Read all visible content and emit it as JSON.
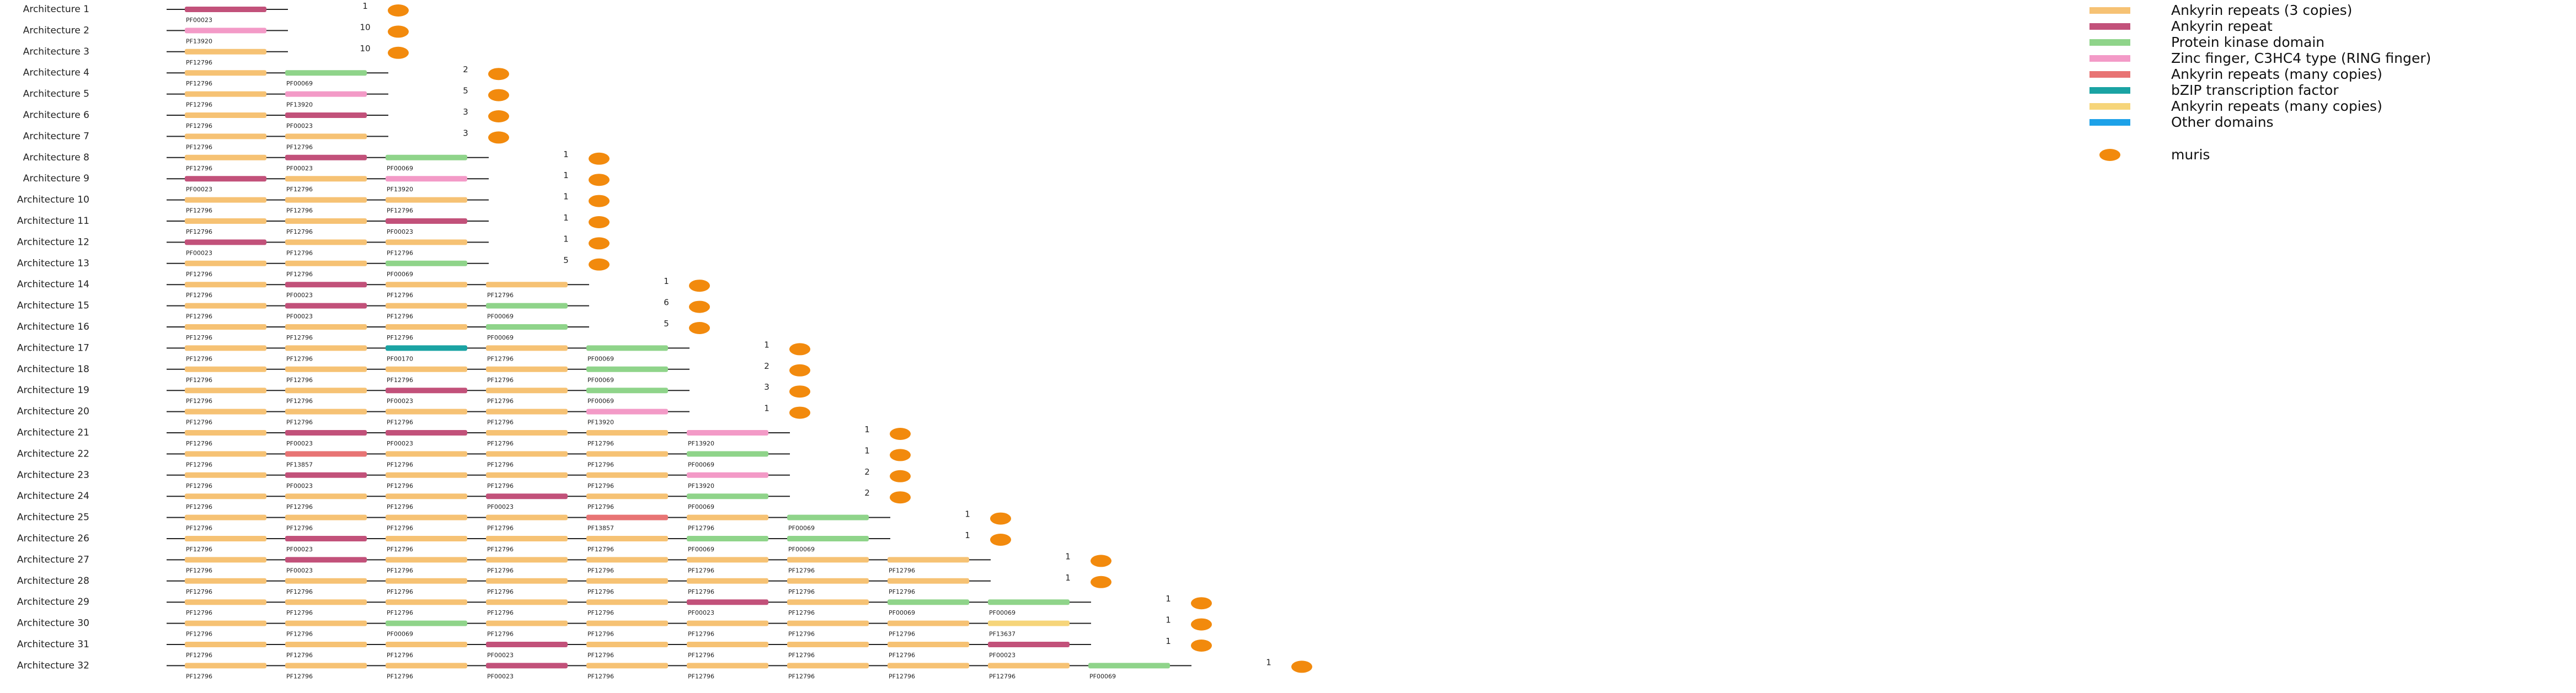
{
  "species": [
    {
      "name": "muris",
      "color": "#f28a0d"
    }
  ],
  "legend": [
    {
      "name": "Ankyrin repeats (3 copies)",
      "color": "#f6c274",
      "code": "PF12796"
    },
    {
      "name": "Ankyrin repeat",
      "color": "#c2517a",
      "code": "PF00023"
    },
    {
      "name": "Protein kinase domain",
      "color": "#8fd48a",
      "code": "PF00069"
    },
    {
      "name": "Zinc finger, C3HC4 type (RING finger)",
      "color": "#f39ac7",
      "code": "PF13920"
    },
    {
      "name": "Ankyrin repeats (many copies)",
      "color": "#e87474",
      "code": "PF13857"
    },
    {
      "name": "bZIP transcription factor",
      "color": "#1aa3a3",
      "code": "PF00170"
    },
    {
      "name": "Ankyrin repeats (many copies)",
      "color": "#f6d57a",
      "code": "PF13637"
    },
    {
      "name": "Other domains",
      "color": "#1da1e8",
      "code": ""
    }
  ],
  "architectures": [
    {
      "label": "Architecture 1",
      "domains": [
        "PF00023"
      ],
      "count": "1"
    },
    {
      "label": "Architecture 2",
      "domains": [
        "PF13920"
      ],
      "count": "10"
    },
    {
      "label": "Architecture 3",
      "domains": [
        "PF12796"
      ],
      "count": "10"
    },
    {
      "label": "Architecture 4",
      "domains": [
        "PF12796",
        "PF00069"
      ],
      "count": "2"
    },
    {
      "label": "Architecture 5",
      "domains": [
        "PF12796",
        "PF13920"
      ],
      "count": "5"
    },
    {
      "label": "Architecture 6",
      "domains": [
        "PF12796",
        "PF00023"
      ],
      "count": "3"
    },
    {
      "label": "Architecture 7",
      "domains": [
        "PF12796",
        "PF12796"
      ],
      "count": "3"
    },
    {
      "label": "Architecture 8",
      "domains": [
        "PF12796",
        "PF00023",
        "PF00069"
      ],
      "count": "1"
    },
    {
      "label": "Architecture 9",
      "domains": [
        "PF00023",
        "PF12796",
        "PF13920"
      ],
      "count": "1"
    },
    {
      "label": "Architecture 10",
      "domains": [
        "PF12796",
        "PF12796",
        "PF12796"
      ],
      "count": "1"
    },
    {
      "label": "Architecture 11",
      "domains": [
        "PF12796",
        "PF12796",
        "PF00023"
      ],
      "count": "1"
    },
    {
      "label": "Architecture 12",
      "domains": [
        "PF00023",
        "PF12796",
        "PF12796"
      ],
      "count": "1"
    },
    {
      "label": "Architecture 13",
      "domains": [
        "PF12796",
        "PF12796",
        "PF00069"
      ],
      "count": "5"
    },
    {
      "label": "Architecture 14",
      "domains": [
        "PF12796",
        "PF00023",
        "PF12796",
        "PF12796"
      ],
      "count": "1"
    },
    {
      "label": "Architecture 15",
      "domains": [
        "PF12796",
        "PF00023",
        "PF12796",
        "PF00069"
      ],
      "count": "6"
    },
    {
      "label": "Architecture 16",
      "domains": [
        "PF12796",
        "PF12796",
        "PF12796",
        "PF00069"
      ],
      "count": "5"
    },
    {
      "label": "Architecture 17",
      "domains": [
        "PF12796",
        "PF12796",
        "PF00170",
        "PF12796",
        "PF00069"
      ],
      "count": "1"
    },
    {
      "label": "Architecture 18",
      "domains": [
        "PF12796",
        "PF12796",
        "PF12796",
        "PF12796",
        "PF00069"
      ],
      "count": "2"
    },
    {
      "label": "Architecture 19",
      "domains": [
        "PF12796",
        "PF12796",
        "PF00023",
        "PF12796",
        "PF00069"
      ],
      "count": "3"
    },
    {
      "label": "Architecture 20",
      "domains": [
        "PF12796",
        "PF12796",
        "PF12796",
        "PF12796",
        "PF13920"
      ],
      "count": "1"
    },
    {
      "label": "Architecture 21",
      "domains": [
        "PF12796",
        "PF00023",
        "PF00023",
        "PF12796",
        "PF12796",
        "PF13920"
      ],
      "count": "1"
    },
    {
      "label": "Architecture 22",
      "domains": [
        "PF12796",
        "PF13857",
        "PF12796",
        "PF12796",
        "PF12796",
        "PF00069"
      ],
      "count": "1"
    },
    {
      "label": "Architecture 23",
      "domains": [
        "PF12796",
        "PF00023",
        "PF12796",
        "PF12796",
        "PF12796",
        "PF13920"
      ],
      "count": "2"
    },
    {
      "label": "Architecture 24",
      "domains": [
        "PF12796",
        "PF12796",
        "PF12796",
        "PF00023",
        "PF12796",
        "PF00069"
      ],
      "count": "2"
    },
    {
      "label": "Architecture 25",
      "domains": [
        "PF12796",
        "PF12796",
        "PF12796",
        "PF12796",
        "PF13857",
        "PF12796",
        "PF00069"
      ],
      "count": "1"
    },
    {
      "label": "Architecture 26",
      "domains": [
        "PF12796",
        "PF00023",
        "PF12796",
        "PF12796",
        "PF12796",
        "PF00069",
        "PF00069"
      ],
      "count": "1"
    },
    {
      "label": "Architecture 27",
      "domains": [
        "PF12796",
        "PF00023",
        "PF12796",
        "PF12796",
        "PF12796",
        "PF12796",
        "PF12796",
        "PF12796"
      ],
      "count": "1"
    },
    {
      "label": "Architecture 28",
      "domains": [
        "PF12796",
        "PF12796",
        "PF12796",
        "PF12796",
        "PF12796",
        "PF12796",
        "PF12796",
        "PF12796"
      ],
      "count": "1"
    },
    {
      "label": "Architecture 29",
      "domains": [
        "PF12796",
        "PF12796",
        "PF12796",
        "PF12796",
        "PF12796",
        "PF00023",
        "PF12796",
        "PF00069",
        "PF00069"
      ],
      "count": "1"
    },
    {
      "label": "Architecture 30",
      "domains": [
        "PF12796",
        "PF12796",
        "PF00069",
        "PF12796",
        "PF12796",
        "PF12796",
        "PF12796",
        "PF12796",
        "PF13637"
      ],
      "count": "1"
    },
    {
      "label": "Architecture 31",
      "domains": [
        "PF12796",
        "PF12796",
        "PF12796",
        "PF00023",
        "PF12796",
        "PF12796",
        "PF12796",
        "PF12796",
        "PF00023"
      ],
      "count": "1"
    },
    {
      "label": "Architecture 32",
      "domains": [
        "PF12796",
        "PF12796",
        "PF12796",
        "PF00023",
        "PF12796",
        "PF12796",
        "PF12796",
        "PF12796",
        "PF12796",
        "PF00069"
      ],
      "count": "1"
    }
  ]
}
